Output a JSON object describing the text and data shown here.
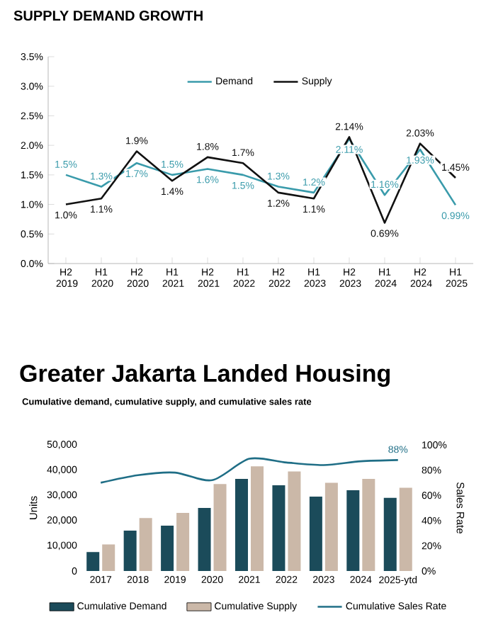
{
  "chart_data": [
    {
      "type": "line",
      "title": "SUPPLY DEMAND GROWTH",
      "categories": [
        "H2 2019",
        "H1 2020",
        "H2 2020",
        "H1 2021",
        "H2 2021",
        "H1 2022",
        "H2 2022",
        "H1 2023",
        "H2 2023",
        "H1 2024",
        "H2 2024",
        "H1 2025"
      ],
      "series": [
        {
          "name": "Demand",
          "color": "#3a9bab",
          "values": [
            1.5,
            1.3,
            1.7,
            1.5,
            1.6,
            1.5,
            1.3,
            1.2,
            2.11,
            1.16,
            1.93,
            0.99
          ],
          "value_labels": [
            "1.5%",
            "1.3%",
            "1.7%",
            "1.5%",
            "1.6%",
            "1.5%",
            "1.3%",
            "1.2%",
            "2.11%",
            "1.16%",
            "1.93%",
            "0.99%"
          ]
        },
        {
          "name": "Supply",
          "color": "#111111",
          "values": [
            1.0,
            1.1,
            1.9,
            1.4,
            1.8,
            1.7,
            1.2,
            1.1,
            2.14,
            0.69,
            2.03,
            1.45
          ],
          "value_labels": [
            "1.0%",
            "1.1%",
            "1.9%",
            "1.4%",
            "1.8%",
            "1.7%",
            "1.2%",
            "1.1%",
            "2.14%",
            "0.69%",
            "2.03%",
            "1.45%"
          ]
        }
      ],
      "ylim": [
        0,
        3.5
      ],
      "yticks": [
        {
          "value": 0,
          "label": "0.0%"
        },
        {
          "value": 0.5,
          "label": "0.5%"
        },
        {
          "value": 1,
          "label": "1.0%"
        },
        {
          "value": 1.5,
          "label": "1.5%"
        },
        {
          "value": 2,
          "label": "2.0%"
        },
        {
          "value": 2.5,
          "label": "2.5%"
        },
        {
          "value": 3,
          "label": "3.0%"
        },
        {
          "value": 3.5,
          "label": "3.5%"
        }
      ],
      "legend": "top",
      "grid": false
    },
    {
      "type": "bar",
      "title": "Greater Jakarta Landed Housing",
      "subtitle": "Cumulative demand, cumulative supply, and cumulative sales rate",
      "ylabel": "Units",
      "y2label": "Sales Rate",
      "categories": [
        "2017",
        "2018",
        "2019",
        "2020",
        "2021",
        "2022",
        "2023",
        "2024",
        "2025-ytd"
      ],
      "series": [
        {
          "name": "Cumulative Demand",
          "color": "#1b4b5a",
          "values": [
            7500,
            16000,
            18000,
            25000,
            36500,
            34000,
            29500,
            32000,
            29000
          ]
        },
        {
          "name": "Cumulative Supply",
          "color": "#cbb8a8",
          "values": [
            10500,
            21000,
            23000,
            34500,
            41500,
            39500,
            35000,
            36500,
            33000
          ]
        },
        {
          "name": "Cumulative Sales Rate",
          "type": "line",
          "axis": "y2",
          "color": "#1f6e86",
          "values": [
            70,
            76,
            78,
            72,
            89,
            86,
            84,
            87,
            88
          ],
          "value_labels": [
            null,
            null,
            null,
            null,
            null,
            null,
            null,
            null,
            "88%"
          ]
        }
      ],
      "ylim": [
        0,
        50000
      ],
      "yticks": [
        {
          "value": 0,
          "label": "0"
        },
        {
          "value": 10000,
          "label": "10,000"
        },
        {
          "value": 20000,
          "label": "20,000"
        },
        {
          "value": 30000,
          "label": "30,000"
        },
        {
          "value": 40000,
          "label": "40,000"
        },
        {
          "value": 50000,
          "label": "50,000"
        }
      ],
      "y2lim": [
        0,
        100
      ],
      "y2ticks": [
        {
          "value": 0,
          "label": "0%"
        },
        {
          "value": 20,
          "label": "20%"
        },
        {
          "value": 40,
          "label": "40%"
        },
        {
          "value": 60,
          "label": "60%"
        },
        {
          "value": 80,
          "label": "80%"
        },
        {
          "value": 100,
          "label": "100%"
        }
      ],
      "legend": "bottom",
      "grid": false
    }
  ]
}
